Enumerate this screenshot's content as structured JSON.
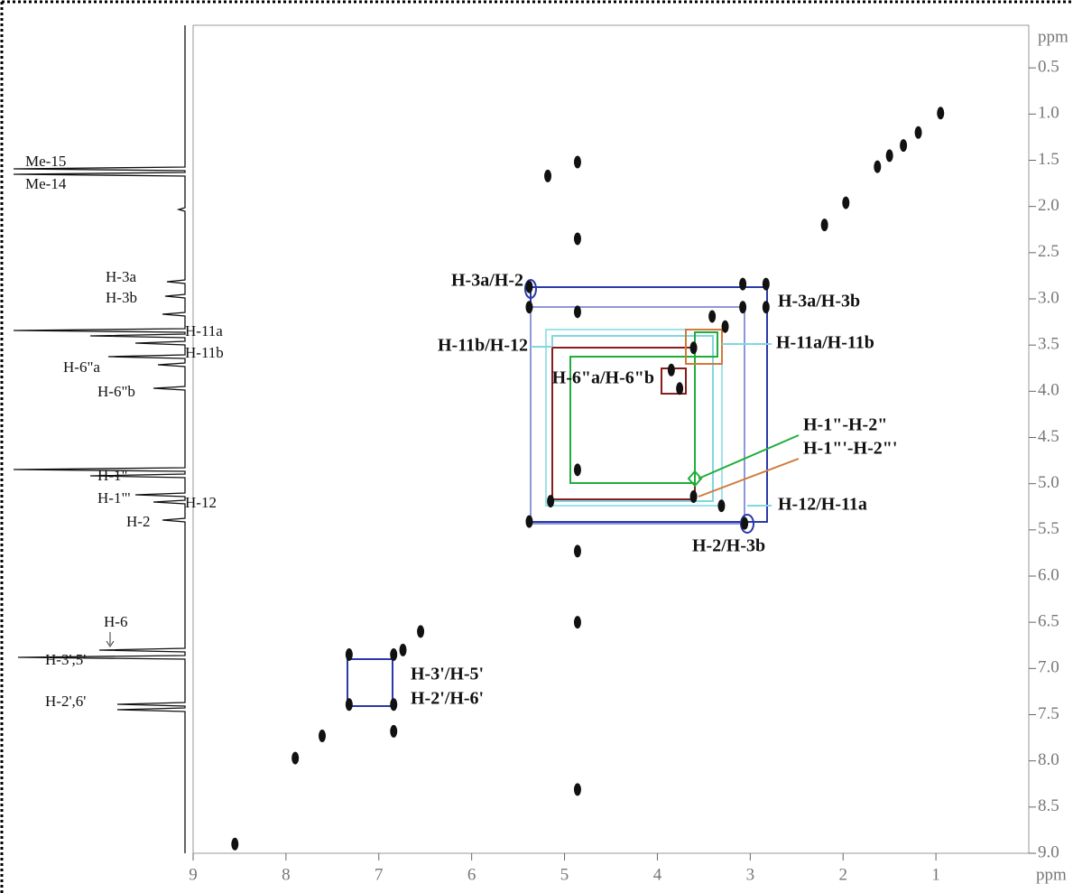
{
  "chart_data": {
    "type": "scatter",
    "x_label": "ppm",
    "y_label": "ppm",
    "xlim": [
      9,
      0
    ],
    "ylim": [
      0,
      9
    ],
    "xticks": [
      9,
      8,
      7,
      6,
      5,
      4,
      3,
      2,
      1
    ],
    "yticks": [
      0.5,
      {
        "value": 1,
        "label": "1.0"
      },
      1.5,
      {
        "value": 2,
        "label": "2.0"
      },
      2.5,
      {
        "value": 3,
        "label": "3.0"
      },
      3.5,
      {
        "value": 4,
        "label": "4.0"
      },
      4.5,
      {
        "value": 5,
        "label": "5.0"
      },
      5.5,
      {
        "value": 6,
        "label": "6.0"
      },
      6.5,
      {
        "value": 7,
        "label": "7.0"
      },
      7.5,
      {
        "value": 8,
        "label": "8.0"
      },
      8.5,
      {
        "value": 9,
        "label": "9.0"
      }
    ],
    "color": "#111111",
    "x": [
      0.95,
      1.19,
      1.35,
      1.5,
      1.63,
      1.97,
      2.2,
      4.86,
      5.18,
      4.86,
      4.86,
      5.38,
      5.38,
      3.08,
      2.83,
      3.08,
      2.83,
      3.41,
      3.27,
      3.61,
      3.85,
      3.76,
      4.86,
      3.61,
      5.15,
      3.31,
      5.38,
      3.06,
      4.86,
      4.86,
      6.55,
      6.74,
      7.32,
      7.32,
      6.84,
      6.84,
      6.84,
      7.61,
      7.9,
      4.86,
      8.55
    ],
    "values": [
      0.99,
      1.2,
      1.34,
      1.45,
      1.57,
      1.96,
      2.2,
      1.52,
      1.67,
      2.35,
      3.14,
      2.87,
      3.09,
      2.84,
      2.84,
      3.09,
      3.09,
      3.19,
      3.3,
      3.53,
      3.77,
      3.97,
      4.85,
      5.14,
      5.19,
      5.24,
      5.41,
      5.43,
      5.73,
      6.5,
      6.6,
      6.8,
      6.85,
      7.39,
      7.39,
      6.85,
      7.68,
      7.73,
      7.97,
      8.31,
      8.9
    ],
    "projection_labels": [
      "Me-15",
      "Me-14",
      "H-3a",
      "H-3b",
      "H-11a",
      "H-11b",
      "H-6\"a",
      "H-6\"b",
      "H-1\"",
      "H-1\"'",
      "H-12",
      "H-2",
      "H-6",
      "H-3',5'",
      "H-2',6'"
    ],
    "cross_peak_labels": [
      "H-3a/H-2",
      "H-3a/H-3b",
      "H-11b/H-12",
      "H-11a/H-11b",
      "H-6\"a/H-6\"b",
      "H-1\"-H-2\"",
      "H-1\"'-H-2\"'",
      "H-12/H-11a",
      "H-2/H-3b",
      "H-3'/H-5'",
      "H-2'/H-6'"
    ]
  }
}
